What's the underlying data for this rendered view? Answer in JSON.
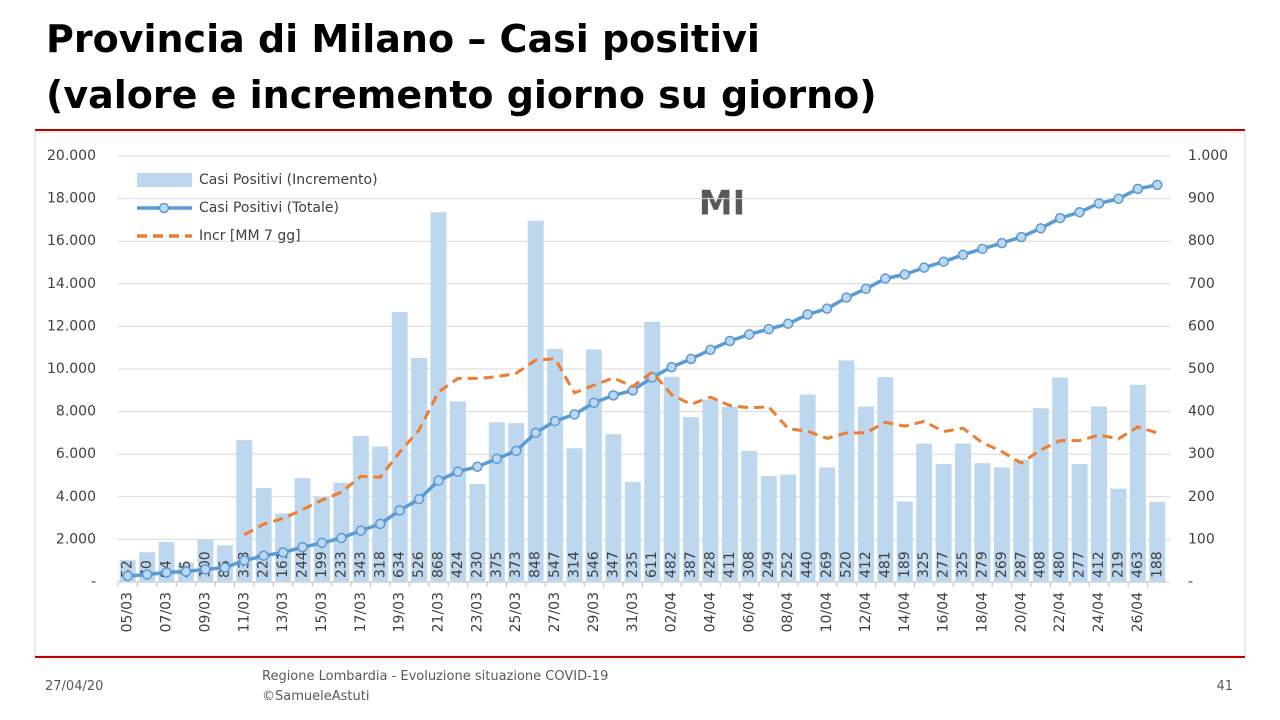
{
  "chart_data": {
    "type": "bar",
    "title": "Provincia di Milano – Casi positivi",
    "subtitle": "(valore e incremento giorno su giorno)",
    "annotation": "MI",
    "categories": [
      "05/03",
      null,
      "07/03",
      null,
      "09/03",
      null,
      "11/03",
      null,
      "13/03",
      null,
      "15/03",
      null,
      "17/03",
      null,
      "19/03",
      null,
      "21/03",
      null,
      "23/03",
      null,
      "25/03",
      null,
      "27/03",
      null,
      "29/03",
      null,
      "31/03",
      null,
      "02/04",
      null,
      "04/04",
      null,
      "06/04",
      null,
      "08/04",
      null,
      "10/04",
      null,
      "12/04",
      null,
      "14/04",
      null,
      "16/04",
      null,
      "18/04",
      null,
      "20/04",
      null,
      "22/04",
      null,
      "24/04",
      null,
      "26/04",
      null
    ],
    "series": [
      {
        "name": "Casi Positivi (Incremento)",
        "type": "bar",
        "axis": "y2",
        "color": "#bdd7ee",
        "values": [
          52,
          70,
          94,
          45,
          100,
          86,
          333,
          221,
          161,
          244,
          199,
          233,
          343,
          318,
          634,
          526,
          868,
          424,
          230,
          375,
          373,
          848,
          547,
          314,
          546,
          347,
          235,
          611,
          482,
          387,
          428,
          411,
          308,
          249,
          252,
          440,
          269,
          520,
          412,
          481,
          189,
          325,
          277,
          325,
          279,
          269,
          287,
          408,
          480,
          277,
          412,
          219,
          463,
          188
        ]
      },
      {
        "name": "Casi Positivi (Totale)",
        "type": "line",
        "color": "#5b9bd5",
        "markers": true,
        "values": [
          282,
          352,
          446,
          491,
          591,
          677,
          1010,
          1231,
          1392,
          1636,
          1835,
          2068,
          2411,
          2729,
          3363,
          3889,
          4757,
          5181,
          5411,
          5786,
          6159,
          7007,
          7554,
          7868,
          8414,
          8761,
          8996,
          9607,
          10089,
          10476,
          10904,
          11315,
          11623,
          11872,
          12124,
          12564,
          12833,
          13353,
          13765,
          14246,
          14435,
          14760,
          15037,
          15362,
          15641,
          15910,
          16197,
          16605,
          17085,
          17362,
          17774,
          17993,
          18456,
          18644
        ]
      },
      {
        "name": "Incr [MM 7 gg]",
        "type": "line",
        "axis": "y2",
        "color": "#ed7d31",
        "dashed": true,
        "values": [
          null,
          null,
          null,
          null,
          null,
          null,
          111,
          136,
          149,
          170,
          192,
          211,
          248,
          246,
          305,
          357,
          446,
          478,
          478,
          482,
          490,
          521,
          524,
          444,
          462,
          479,
          459,
          493,
          440,
          417,
          434,
          414,
          409,
          411,
          360,
          354,
          337,
          350,
          350,
          375,
          366,
          377,
          353,
          361,
          327,
          306,
          279,
          310,
          332,
          332,
          345,
          336,
          364,
          350
        ]
      }
    ],
    "ylim": [
      0,
      20000
    ],
    "yticks": [
      {
        "value": 0,
        "label": "-"
      },
      {
        "value": 2000,
        "label": "2.000"
      },
      {
        "value": 4000,
        "label": "4.000"
      },
      {
        "value": 6000,
        "label": "6.000"
      },
      {
        "value": 8000,
        "label": "8.000"
      },
      {
        "value": 10000,
        "label": "10.000"
      },
      {
        "value": 12000,
        "label": "12.000"
      },
      {
        "value": 14000,
        "label": "14.000"
      },
      {
        "value": 16000,
        "label": "16.000"
      },
      {
        "value": 18000,
        "label": "18.000"
      },
      {
        "value": 20000,
        "label": "20.000"
      }
    ],
    "y2lim": [
      0,
      1000
    ],
    "y2ticks": [
      {
        "value": 0,
        "label": "-"
      },
      100,
      200,
      300,
      400,
      500,
      600,
      700,
      800,
      900,
      {
        "value": 1000,
        "label": "1.000"
      }
    ],
    "grid": true,
    "legend": "upper left",
    "value_labels_shown": true
  },
  "footer": {
    "date": "27/04/20",
    "source": "Regione Lombardia - Evoluzione situazione COVID-19",
    "author": "©SamueleAstuti",
    "page": "41"
  }
}
